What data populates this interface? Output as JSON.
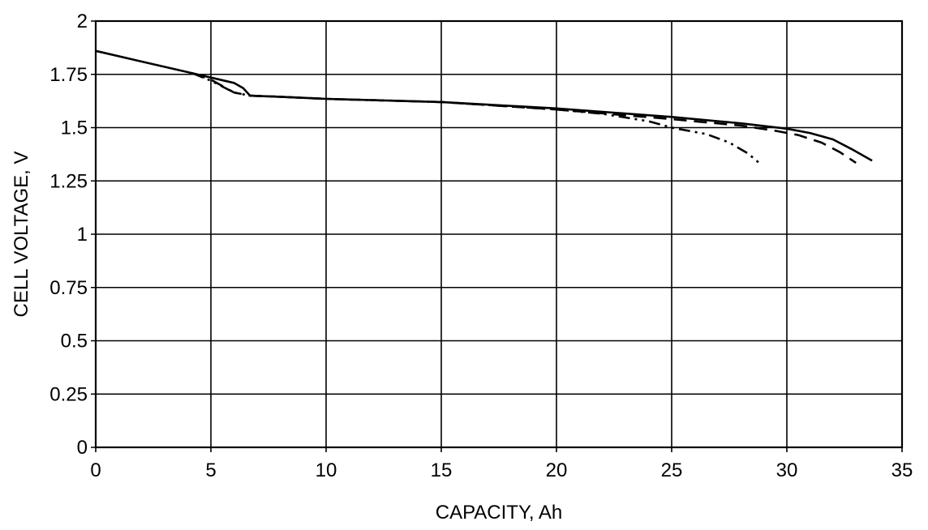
{
  "chart_data": {
    "type": "line",
    "title": "",
    "xlabel": "CAPACITY, Ah",
    "ylabel": "CELL VOLTAGE, V",
    "xlim": [
      0,
      35
    ],
    "ylim": [
      0,
      2
    ],
    "x_ticks": [
      "0",
      "5",
      "10",
      "15",
      "20",
      "25",
      "30",
      "35"
    ],
    "y_ticks": [
      "0",
      "0.25",
      "0.5",
      "0.75",
      "1",
      "1.25",
      "1.5",
      "1.75",
      "2"
    ],
    "grid": true,
    "legend": "none",
    "series": [
      {
        "style": "solid",
        "points": [
          [
            0,
            1.86
          ],
          [
            2,
            1.81
          ],
          [
            4.2,
            1.755
          ],
          [
            5,
            1.735
          ],
          [
            6,
            1.71
          ],
          [
            6.4,
            1.685
          ],
          [
            6.7,
            1.65
          ],
          [
            8,
            1.645
          ],
          [
            10,
            1.635
          ],
          [
            15,
            1.62
          ],
          [
            20,
            1.59
          ],
          [
            25,
            1.55
          ],
          [
            28,
            1.52
          ],
          [
            30,
            1.495
          ],
          [
            31,
            1.475
          ],
          [
            32,
            1.445
          ],
          [
            32.8,
            1.4
          ],
          [
            33.7,
            1.345
          ]
        ]
      },
      {
        "style": "dashed",
        "points": [
          [
            4.2,
            1.755
          ],
          [
            5,
            1.725
          ],
          [
            6,
            1.665
          ],
          [
            6.7,
            1.65
          ],
          [
            8,
            1.645
          ],
          [
            10,
            1.635
          ],
          [
            15,
            1.62
          ],
          [
            20,
            1.585
          ],
          [
            25,
            1.54
          ],
          [
            28,
            1.51
          ],
          [
            29.5,
            1.485
          ],
          [
            30.5,
            1.465
          ],
          [
            31.5,
            1.43
          ],
          [
            32.3,
            1.385
          ],
          [
            33,
            1.335
          ]
        ]
      },
      {
        "style": "dash-dot-dot",
        "points": [
          [
            4.2,
            1.755
          ],
          [
            5,
            1.72
          ],
          [
            6,
            1.665
          ],
          [
            6.7,
            1.65
          ],
          [
            8,
            1.645
          ],
          [
            10,
            1.635
          ],
          [
            15,
            1.62
          ],
          [
            20,
            1.585
          ],
          [
            22,
            1.565
          ],
          [
            24,
            1.53
          ],
          [
            25,
            1.5
          ],
          [
            26.5,
            1.47
          ],
          [
            27.5,
            1.43
          ],
          [
            28.3,
            1.38
          ],
          [
            28.9,
            1.325
          ]
        ]
      }
    ]
  }
}
